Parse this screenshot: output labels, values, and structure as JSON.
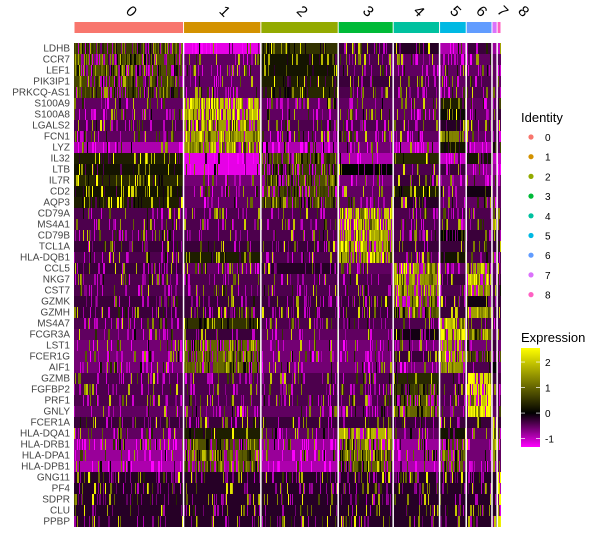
{
  "chart_data": {
    "type": "heatmap",
    "title": "",
    "clusters": [
      "0",
      "1",
      "2",
      "3",
      "4",
      "5",
      "6",
      "7",
      "8"
    ],
    "cluster_colors": [
      "#F8766D",
      "#D39200",
      "#93AA00",
      "#00BA38",
      "#00C19F",
      "#00B9E3",
      "#619CFF",
      "#DB72FB",
      "#FF61C3"
    ],
    "cluster_fraction": [
      0.255,
      0.18,
      0.18,
      0.128,
      0.108,
      0.062,
      0.06,
      0.012,
      0.009
    ],
    "genes": [
      "LDHB",
      "CCR7",
      "LEF1",
      "PIK3IP1",
      "PRKCQ-AS1",
      "S100A9",
      "S100A8",
      "LGALS2",
      "FCN1",
      "LYZ",
      "IL32",
      "LTB",
      "IL7R",
      "CD2",
      "AQP3",
      "CD79A",
      "MS4A1",
      "CD79B",
      "TCL1A",
      "HLA-DQB1",
      "CCL5",
      "NKG7",
      "CST7",
      "GZMK",
      "GZMH",
      "MS4A7",
      "FCGR3A",
      "LST1",
      "FCER1G",
      "AIF1",
      "GZMB",
      "FGFBP2",
      "PRF1",
      "GNLY",
      "FCER1A",
      "HLA-DQA1",
      "HLA-DRB1",
      "HLA-DPA1",
      "HLA-DPB1",
      "GNG11",
      "PF4",
      "SDPR",
      "CLU",
      "PPBP"
    ],
    "mean_expression": [
      [
        0.6,
        -1.2,
        0.5,
        -0.3,
        -0.2,
        -0.9,
        -0.3,
        -0.8,
        -1.0
      ],
      [
        0.8,
        -0.5,
        0.2,
        -0.4,
        -0.5,
        -0.5,
        -0.5,
        -0.5,
        -0.5
      ],
      [
        0.8,
        -0.5,
        0.2,
        -0.4,
        -0.5,
        -0.5,
        -0.5,
        -0.5,
        -0.5
      ],
      [
        0.7,
        -0.5,
        0.3,
        -0.3,
        -0.4,
        -0.5,
        -0.4,
        -0.5,
        -0.5
      ],
      [
        0.6,
        -0.5,
        0.4,
        -0.4,
        -0.4,
        -0.5,
        -0.4,
        -0.5,
        -0.5
      ],
      [
        -0.5,
        2.0,
        -0.5,
        -0.5,
        -0.5,
        0.3,
        -0.5,
        -0.5,
        -0.3
      ],
      [
        -0.5,
        1.9,
        -0.5,
        -0.5,
        -0.5,
        0.1,
        -0.5,
        -0.5,
        -0.3
      ],
      [
        -0.4,
        1.6,
        -0.4,
        -0.4,
        -0.4,
        -0.2,
        -0.4,
        -0.4,
        -0.4
      ],
      [
        -0.5,
        1.6,
        -0.5,
        -0.5,
        -0.5,
        1.3,
        -0.5,
        -0.4,
        -0.4
      ],
      [
        -0.9,
        1.5,
        -0.9,
        -0.6,
        -0.9,
        0.2,
        -0.9,
        1.0,
        -0.5
      ],
      [
        0.3,
        -1.2,
        0.7,
        -0.9,
        0.4,
        -1.0,
        0.2,
        -1.0,
        -1.0
      ],
      [
        0.2,
        -1.2,
        0.6,
        0.0,
        -0.4,
        -0.3,
        -0.7,
        -0.8,
        -1.0
      ],
      [
        0.4,
        -0.6,
        0.8,
        -0.6,
        -0.3,
        -0.6,
        -0.6,
        -0.6,
        -0.6
      ],
      [
        0.2,
        -0.5,
        0.7,
        -0.5,
        0.3,
        -0.5,
        -0.1,
        -0.5,
        -0.5
      ],
      [
        0.3,
        -0.5,
        0.7,
        -0.5,
        -0.2,
        -0.5,
        -0.5,
        -0.5,
        -0.5
      ],
      [
        -0.4,
        -0.4,
        -0.4,
        2.0,
        -0.4,
        -0.4,
        -0.4,
        -0.4,
        -0.4
      ],
      [
        -0.4,
        -0.4,
        -0.4,
        1.9,
        -0.4,
        -0.4,
        -0.4,
        -0.4,
        -0.4
      ],
      [
        -0.4,
        -0.4,
        -0.4,
        1.7,
        -0.4,
        0.0,
        -0.3,
        -0.4,
        -0.4
      ],
      [
        -0.3,
        -0.3,
        -0.3,
        1.7,
        -0.3,
        -0.3,
        -0.3,
        -0.3,
        -0.3
      ],
      [
        -0.4,
        0.3,
        -0.4,
        1.6,
        -0.4,
        0.2,
        -0.4,
        1.0,
        -0.4
      ],
      [
        -0.3,
        -0.5,
        -0.2,
        -0.5,
        1.6,
        -0.5,
        1.5,
        -0.5,
        -0.5
      ],
      [
        -0.4,
        -0.4,
        -0.4,
        -0.4,
        1.5,
        -0.3,
        2.0,
        -0.4,
        -0.3
      ],
      [
        -0.4,
        -0.4,
        -0.4,
        -0.4,
        1.6,
        -0.4,
        1.4,
        -0.4,
        -0.4
      ],
      [
        -0.3,
        -0.3,
        -0.3,
        -0.3,
        1.3,
        -0.3,
        -0.1,
        -0.3,
        -0.3
      ],
      [
        -0.3,
        -0.3,
        -0.3,
        -0.3,
        1.0,
        -0.3,
        1.6,
        -0.3,
        -0.3
      ],
      [
        -0.4,
        0.5,
        -0.4,
        -0.4,
        -0.4,
        2.0,
        -0.4,
        -0.4,
        -0.4
      ],
      [
        -0.5,
        -0.3,
        -0.5,
        -0.5,
        -0.1,
        2.0,
        1.0,
        -0.5,
        -0.4
      ],
      [
        -0.6,
        1.0,
        -0.6,
        -0.6,
        -0.6,
        1.5,
        -0.6,
        -0.3,
        -0.6
      ],
      [
        -0.6,
        1.0,
        -0.6,
        -0.6,
        -0.3,
        1.6,
        0.6,
        -0.3,
        -0.4
      ],
      [
        -0.6,
        1.0,
        -0.6,
        -0.6,
        -0.6,
        1.5,
        -0.4,
        0.0,
        -0.6
      ],
      [
        -0.4,
        -0.4,
        -0.4,
        -0.4,
        0.4,
        -0.4,
        2.2,
        -0.3,
        -0.4
      ],
      [
        -0.4,
        -0.4,
        -0.4,
        -0.4,
        0.6,
        -0.4,
        2.2,
        -0.4,
        -0.4
      ],
      [
        -0.4,
        -0.4,
        -0.4,
        -0.4,
        0.8,
        -0.4,
        2.0,
        -0.4,
        -0.4
      ],
      [
        -0.5,
        -0.5,
        -0.5,
        -0.5,
        1.0,
        -0.5,
        2.2,
        -0.5,
        -0.5
      ],
      [
        -0.3,
        -0.3,
        -0.3,
        -0.3,
        -0.3,
        -0.3,
        -0.3,
        2.4,
        -0.3
      ],
      [
        -0.5,
        0.3,
        -0.5,
        1.8,
        -0.5,
        0.2,
        -0.5,
        1.5,
        -0.5
      ],
      [
        -0.8,
        0.8,
        -0.8,
        1.2,
        -0.8,
        0.8,
        -0.6,
        1.5,
        -0.5
      ],
      [
        -0.8,
        0.9,
        -0.8,
        1.0,
        -0.8,
        1.0,
        -0.6,
        1.5,
        -0.5
      ],
      [
        -0.9,
        0.9,
        -0.9,
        1.0,
        -0.9,
        1.0,
        -0.6,
        1.5,
        -0.5
      ],
      [
        -0.2,
        -0.2,
        -0.2,
        -0.2,
        -0.2,
        -0.2,
        -0.2,
        -0.2,
        2.4
      ],
      [
        -0.2,
        -0.2,
        -0.2,
        -0.2,
        -0.2,
        -0.2,
        -0.2,
        -0.2,
        2.4
      ],
      [
        -0.2,
        -0.2,
        -0.2,
        -0.2,
        -0.2,
        -0.2,
        -0.2,
        -0.2,
        2.4
      ],
      [
        -0.2,
        -0.2,
        -0.2,
        -0.2,
        -0.2,
        -0.2,
        -0.2,
        -0.2,
        2.4
      ],
      [
        -0.2,
        -0.2,
        -0.2,
        -0.2,
        -0.2,
        -0.2,
        -0.2,
        -0.2,
        2.4
      ]
    ],
    "color_scale": {
      "low": "#FF00FF",
      "mid": "#000000",
      "high": "#FFFF00",
      "range": [
        -1.33,
        2.55
      ]
    },
    "legend": {
      "identity_title": "Identity",
      "identity_labels": [
        "0",
        "1",
        "2",
        "3",
        "4",
        "5",
        "6",
        "7",
        "8"
      ],
      "expression_title": "Expression",
      "expression_ticks": [
        "2",
        "1",
        "0",
        "-1"
      ],
      "expression_tick_values": [
        2,
        1,
        0,
        -1
      ],
      "placement": "right"
    }
  }
}
